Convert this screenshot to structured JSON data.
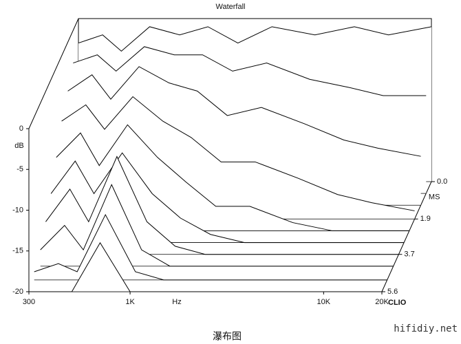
{
  "chart_data": {
    "type": "waterfall3d",
    "title": "Waterfall",
    "y_label": "dB",
    "x_label": "Hz",
    "depth_label": "MS",
    "brand": "CLIO",
    "x": [
      300,
      400,
      500,
      700,
      1000,
      1400,
      2000,
      3000,
      5000,
      8000,
      12000,
      20000
    ],
    "xscale": "log",
    "xlim": [
      300,
      20000
    ],
    "xticks": [
      300,
      {
        "value": 1000,
        "label": "1K"
      },
      {
        "value": 10000,
        "label": "10K"
      },
      {
        "value": 20000,
        "label": "20K"
      }
    ],
    "ylim": [
      -20,
      0
    ],
    "yticks": [
      0,
      -5,
      -10,
      -15,
      -20
    ],
    "tlim": [
      0,
      5.6
    ],
    "tticks": [
      {
        "value": 0,
        "label": "0.0"
      },
      1.9,
      3.7,
      5.6
    ],
    "color": "#000000",
    "slices": [
      {
        "t": 0,
        "values": [
          -3,
          -2,
          -4,
          -1,
          -2,
          -1,
          -3,
          -1,
          -2,
          -1,
          -2,
          -1
        ]
      },
      {
        "t": 0.6,
        "values": [
          -4,
          -3,
          -5,
          -2,
          -3,
          -3,
          -5,
          -4,
          -6,
          -7,
          -8,
          -8
        ]
      },
      {
        "t": 1.2,
        "values": [
          -6,
          -4,
          -7,
          -3,
          -5,
          -6,
          -9,
          -8,
          -10,
          -12,
          -13,
          -14
        ]
      },
      {
        "t": 1.9,
        "values": [
          -8,
          -6,
          -9,
          -5,
          -8,
          -10,
          -13,
          -13,
          -15,
          -17,
          -18,
          -19
        ]
      },
      {
        "t": 2.5,
        "values": [
          -11,
          -8,
          -12,
          -7,
          -11,
          -14,
          -17,
          -17,
          -19,
          -20,
          -20,
          -20
        ]
      },
      {
        "t": 3.1,
        "values": [
          -14,
          -10,
          -14,
          -9,
          -14,
          -17,
          -19,
          -20,
          -20,
          -20,
          -20,
          -20
        ]
      },
      {
        "t": 3.7,
        "values": [
          -16,
          -12,
          -16,
          -8,
          -16,
          -19,
          -20,
          -20,
          -20,
          -20,
          -20,
          -20
        ]
      },
      {
        "t": 4.3,
        "values": [
          -18,
          -15,
          -18,
          -10,
          -18,
          -20,
          -20,
          -20,
          -20,
          -20,
          -20,
          -20
        ]
      },
      {
        "t": 5.0,
        "values": [
          -19,
          -18,
          -19,
          -12,
          -19,
          -20,
          -20,
          -20,
          -20,
          -20,
          -20,
          -20
        ]
      },
      {
        "t": 5.6,
        "values": [
          -20,
          -20,
          -20,
          -14,
          -20,
          -20,
          -20,
          -20,
          -20,
          -20,
          -20,
          -20
        ]
      }
    ]
  },
  "caption": "瀑布图",
  "watermark": "hifidiy.net"
}
